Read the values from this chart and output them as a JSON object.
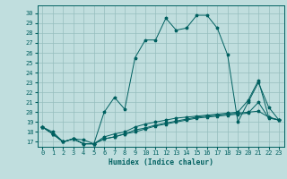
{
  "xlabel": "Humidex (Indice chaleur)",
  "bg_color": "#c0dede",
  "grid_color": "#96bebe",
  "line_color": "#006060",
  "xlim": [
    -0.5,
    23.5
  ],
  "ylim": [
    16.5,
    30.8
  ],
  "yticks": [
    17,
    18,
    19,
    20,
    21,
    22,
    23,
    24,
    25,
    26,
    27,
    28,
    29,
    30
  ],
  "xticks": [
    0,
    1,
    2,
    3,
    4,
    5,
    6,
    7,
    8,
    9,
    10,
    11,
    12,
    13,
    14,
    15,
    16,
    17,
    18,
    19,
    20,
    21,
    22,
    23
  ],
  "series": [
    [
      18.5,
      18.0,
      17.0,
      17.3,
      17.2,
      16.8,
      20.0,
      21.5,
      20.3,
      25.5,
      27.3,
      27.3,
      29.5,
      28.3,
      28.5,
      29.8,
      29.8,
      28.5,
      25.8,
      19.0,
      21.0,
      23.0,
      20.5,
      19.2
    ],
    [
      18.5,
      17.8,
      17.0,
      17.3,
      16.8,
      16.8,
      17.3,
      17.5,
      17.8,
      18.2,
      18.4,
      18.7,
      18.9,
      19.1,
      19.3,
      19.5,
      19.6,
      19.7,
      19.8,
      19.9,
      20.0,
      20.1,
      19.5,
      19.2
    ],
    [
      18.5,
      17.8,
      17.0,
      17.3,
      16.8,
      16.8,
      17.3,
      17.5,
      17.8,
      18.0,
      18.3,
      18.6,
      18.8,
      19.0,
      19.2,
      19.4,
      19.5,
      19.6,
      19.7,
      19.8,
      19.9,
      21.0,
      19.4,
      19.2
    ],
    [
      18.5,
      17.8,
      17.0,
      17.3,
      16.8,
      16.8,
      17.5,
      17.8,
      18.0,
      18.5,
      18.8,
      19.0,
      19.2,
      19.4,
      19.5,
      19.6,
      19.7,
      19.8,
      19.9,
      20.0,
      21.2,
      23.2,
      19.5,
      19.2
    ]
  ]
}
